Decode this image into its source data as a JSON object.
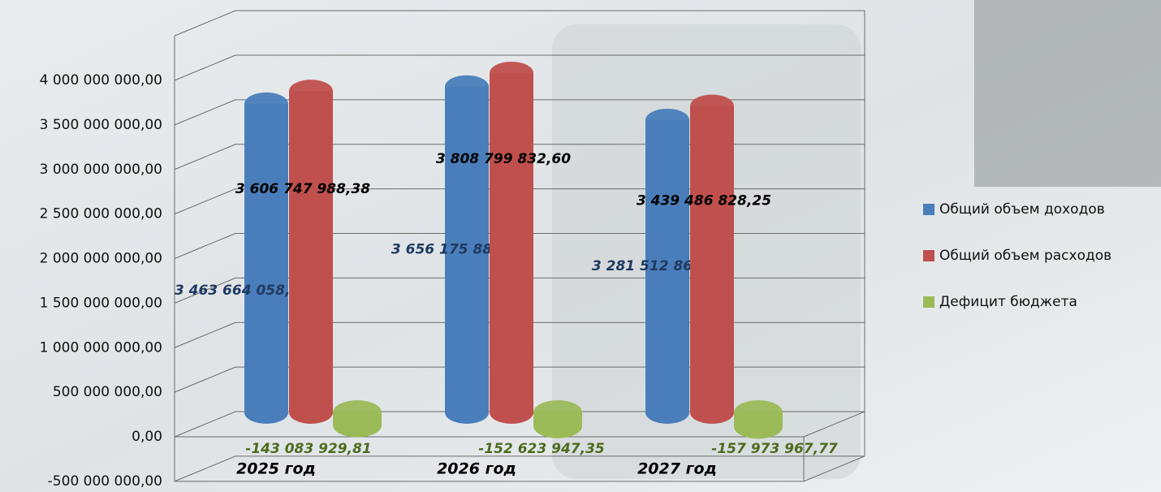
{
  "chart_data": {
    "type": "bar3d",
    "categories": [
      "2025 год",
      "2026 год",
      "2027 год"
    ],
    "series": [
      {
        "name": "Общий объем доходов",
        "color": "#4a7ebb",
        "values": [
          3463664058.57,
          3656175885.25,
          3281512860.48
        ],
        "value_labels": [
          "3 463 664 058,57",
          "3 656 175 885,25",
          "3 281 512 860,48"
        ]
      },
      {
        "name": "Общий объем расходов",
        "color": "#c0504d",
        "values": [
          3606747988.38,
          3808799832.6,
          3439486828.25
        ],
        "value_labels": [
          "3 606 747 988,38",
          "3 808 799 832,60",
          "3 439 486 828,25"
        ]
      },
      {
        "name": "Дефицит бюджета",
        "color": "#9bbb59",
        "values": [
          -143083929.81,
          -152623947.35,
          -157973967.77
        ],
        "value_labels": [
          "-143 083 929,81",
          "-152 623 947,35",
          "-157 973 967,77"
        ]
      }
    ],
    "ylim": [
      -500000000,
      4500000000
    ],
    "yticks": [
      {
        "value": -500000000,
        "label": "-500 000 000,00"
      },
      {
        "value": 0,
        "label": "0,00"
      },
      {
        "value": 500000000,
        "label": "500 000 000,00"
      },
      {
        "value": 1000000000,
        "label": "1 000 000 000,00"
      },
      {
        "value": 1500000000,
        "label": "1 500 000 000,00"
      },
      {
        "value": 2000000000,
        "label": "2 000 000 000,00"
      },
      {
        "value": 2500000000,
        "label": "2 500 000 000,00"
      },
      {
        "value": 3000000000,
        "label": "3 000 000 000,00"
      },
      {
        "value": 3500000000,
        "label": "3 500 000 000,00"
      },
      {
        "value": 4000000000,
        "label": "4 000 000 000,00"
      }
    ],
    "grid": true,
    "legend": "right"
  }
}
